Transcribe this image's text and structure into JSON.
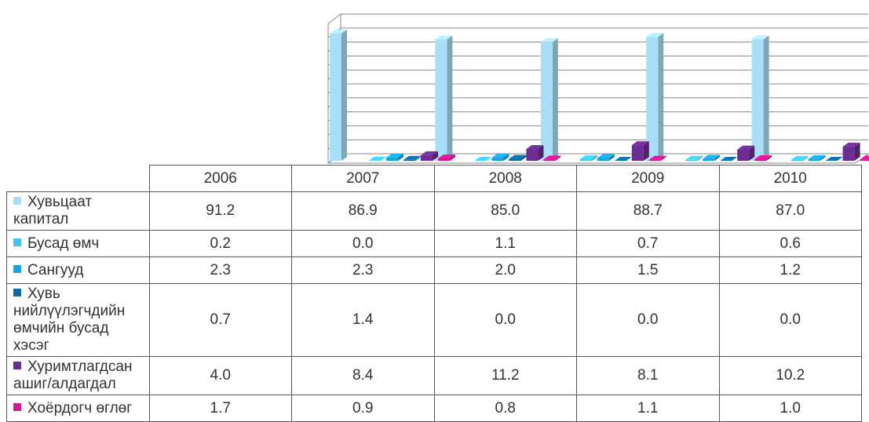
{
  "chart_data": {
    "type": "bar3d",
    "categories": [
      "2006",
      "2007",
      "2008",
      "2009",
      "2010"
    ],
    "series": [
      {
        "name": "Хувьцаат капитал",
        "color": "#a8def6",
        "values": [
          91.2,
          86.9,
          85.0,
          88.7,
          87.0
        ],
        "value_labels": [
          "91.2",
          "86.9",
          "85.0",
          "88.7",
          "87.0"
        ]
      },
      {
        "name": "Бусад өмч",
        "color": "#3fc6ef",
        "values": [
          0.2,
          0.0,
          1.1,
          0.7,
          0.6
        ],
        "value_labels": [
          "0.2",
          "0.0",
          "1.1",
          "0.7",
          "0.6"
        ]
      },
      {
        "name": "Сангууд",
        "color": "#16a6df",
        "values": [
          2.3,
          2.3,
          2.0,
          1.5,
          1.2
        ],
        "value_labels": [
          "2.3",
          "2.3",
          "2.0",
          "1.5",
          "1.2"
        ]
      },
      {
        "name": "Хувь нийлүүлэгчдийн өмчийн бусад хэсэг",
        "color": "#0d6aa6",
        "values": [
          0.7,
          1.4,
          0.0,
          0.0,
          0.0
        ],
        "value_labels": [
          "0.7",
          "1.4",
          "0.0",
          "0.0",
          "0.0"
        ]
      },
      {
        "name": "Хуримтлагдсан ашиг/алдагдал",
        "color": "#6b2d92",
        "values": [
          4.0,
          8.4,
          11.2,
          8.1,
          10.2
        ],
        "value_labels": [
          "4.0",
          "8.4",
          "11.2",
          "8.1",
          "10.2"
        ]
      },
      {
        "name": "Хоёрдогч өглөг",
        "color": "#d4178c",
        "values": [
          1.7,
          0.9,
          0.8,
          1.1,
          1.0
        ],
        "value_labels": [
          "1.7",
          "0.9",
          "0.8",
          "1.1",
          "1.0"
        ]
      }
    ],
    "ylim": [
      0,
      100
    ],
    "yticks": [
      0,
      10,
      20,
      30,
      40,
      50,
      60,
      70,
      80,
      90,
      100
    ],
    "grid": true
  }
}
